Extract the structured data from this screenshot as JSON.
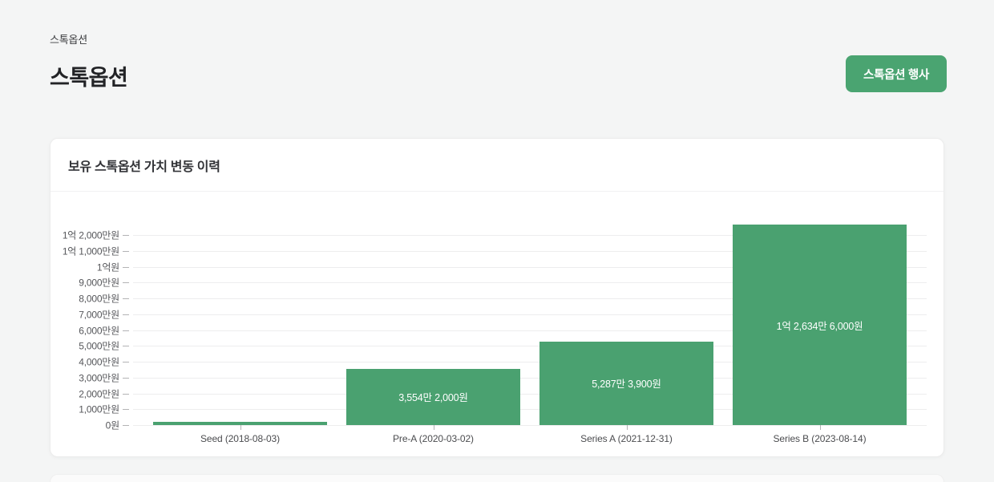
{
  "breadcrumb": "스톡옵션",
  "header": {
    "title": "스톡옵션",
    "action_button_label": "스톡옵션 행사"
  },
  "card": {
    "title": "보유 스톡옵션 가치 변동 이력"
  },
  "colors": {
    "accent_green": "#4aa471",
    "bar_green": "#4aa170",
    "page_background": "#f4f5f5",
    "card_background": "#ffffff"
  },
  "chart_data": {
    "type": "bar",
    "title": "보유 스톡옵션 가치 변동 이력",
    "categories": [
      "Seed (2018-08-03)",
      "Pre-A (2020-03-02)",
      "Series A (2021-12-31)",
      "Series B (2023-08-14)"
    ],
    "values": [
      1800000,
      35542000,
      52873900,
      126346000
    ],
    "bar_value_labels": [
      "",
      "3,554만 2,000원",
      "5,287만 3,900원",
      "1억 2,634만 6,000원"
    ],
    "y_tick_values": [
      0,
      10000000,
      20000000,
      30000000,
      40000000,
      50000000,
      60000000,
      70000000,
      80000000,
      90000000,
      100000000,
      110000000,
      120000000
    ],
    "y_tick_labels": [
      "0원",
      "1,000만원",
      "2,000만원",
      "3,000만원",
      "4,000만원",
      "5,000만원",
      "6,000만원",
      "7,000만원",
      "8,000만원",
      "9,000만원",
      "1억원",
      "1억 1,000만원",
      "1억 2,000만원"
    ],
    "ylim": [
      0,
      120000000
    ],
    "xlabel": "",
    "ylabel": "",
    "grid": "horizontal",
    "legend": "none",
    "bar_color": "#4aa170",
    "bar_label_color": "#ffffff"
  }
}
